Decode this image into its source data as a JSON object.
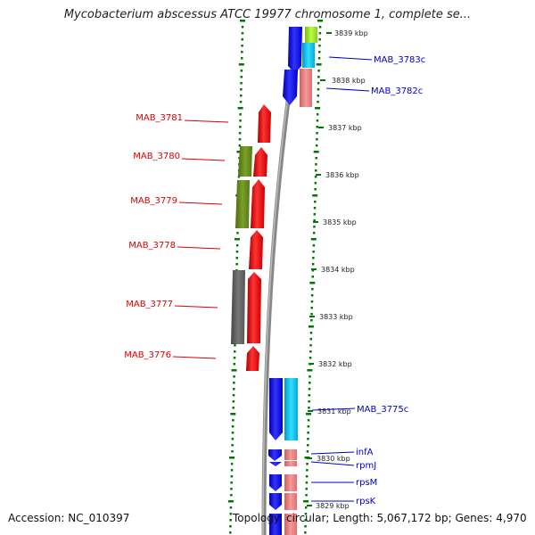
{
  "title": "Mycobacterium abscessus ATCC 19977 chromosome 1, complete se...",
  "footer": {
    "accession": "Accession: NC_010397",
    "summary": "Topology: circular; Length: 5,067,172 bp; Genes: 4,970"
  },
  "colors": {
    "forward_gene": "#ee1111",
    "reverse_gene": "#1111ee",
    "olive_feature": "#6b8e23",
    "gray_feature": "#666666",
    "salmon_feature": "#f08080",
    "cyan_feature": "#22bbee",
    "lime_feature": "#99dd22",
    "tick": "#007700",
    "backbone": "#888888"
  },
  "kbp_labels": [
    "3839 kbp",
    "3838 kbp",
    "3837 kbp",
    "3836 kbp",
    "3835 kbp",
    "3834 kbp",
    "3833 kbp",
    "3832 kbp",
    "3831 kbp",
    "3830 kbp",
    "3829 kbp"
  ],
  "genes_left": [
    "MAB_3781",
    "MAB_3780",
    "MAB_3779",
    "MAB_3778",
    "MAB_3777",
    "MAB_3776"
  ],
  "genes_right": [
    "MAB_3783c",
    "MAB_3782c",
    "MAB_3775c",
    "infA",
    "rpmJ",
    "rpsM",
    "rpsK"
  ]
}
